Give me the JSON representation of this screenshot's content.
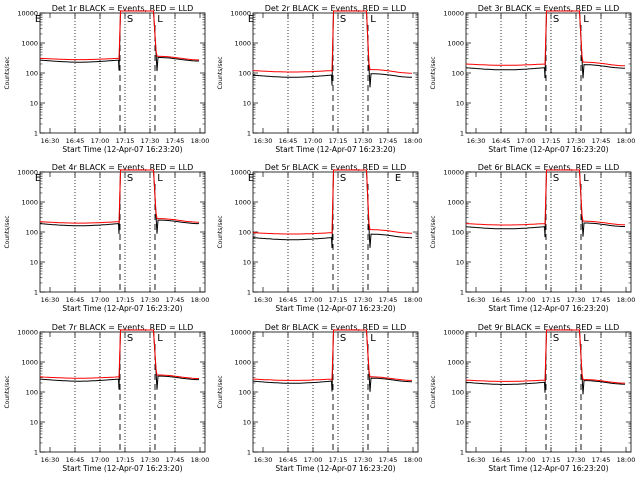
{
  "figure": {
    "background": "#ffffff",
    "colors": {
      "axes": "#000000",
      "events": "#000000",
      "lld": "#ff0000"
    },
    "rows": 3,
    "cols": 3
  },
  "chart_data": [
    {
      "type": "line",
      "title": "Det 1r BLACK = Events, RED = LLD",
      "xlabel": "Start Time (12-Apr-07 16:23:20)",
      "ylabel": "Counts/sec",
      "yscale": "log",
      "ylim": [
        1,
        10000
      ],
      "xlim": [
        16.4,
        18.05
      ],
      "xtick_values": [
        16.5,
        16.75,
        17.0,
        17.25,
        17.5,
        17.75,
        18.0
      ],
      "xticks": [
        "16:30",
        "16:45",
        "17:00",
        "17:15",
        "17:30",
        "17:45",
        "18:00"
      ],
      "yticks": [
        "1",
        "10",
        "100",
        "1000",
        "10000"
      ],
      "markers": [
        {
          "x": 16.38,
          "label": "E"
        },
        {
          "x": 17.3,
          "label": "S"
        },
        {
          "x": 17.6,
          "label": "L"
        }
      ],
      "dotted_lines": [
        16.75,
        17.0,
        17.25,
        17.5,
        17.75
      ],
      "dashed_lines": [
        17.2,
        17.55
      ],
      "events_level": 270,
      "lld_level": 310,
      "events_level_after": 330,
      "lld_level_after": 360
    },
    {
      "type": "line",
      "title": "Det 2r BLACK = Events, RED = LLD",
      "xlabel": "Start Time (12-Apr-07 16:23:20)",
      "ylabel": "Counts/sec",
      "yscale": "log",
      "ylim": [
        1,
        10000
      ],
      "xlim": [
        16.4,
        18.05
      ],
      "xtick_values": [
        16.5,
        16.75,
        17.0,
        17.25,
        17.5,
        17.75,
        18.0
      ],
      "xticks": [
        "16:30",
        "16:45",
        "17:00",
        "17:15",
        "17:30",
        "17:45",
        "18:00"
      ],
      "yticks": [
        "1",
        "10",
        "100",
        "1000",
        "10000"
      ],
      "markers": [
        {
          "x": 16.38,
          "label": "E"
        },
        {
          "x": 17.3,
          "label": "S"
        },
        {
          "x": 17.6,
          "label": "L"
        }
      ],
      "dotted_lines": [
        16.75,
        17.0,
        17.25,
        17.5,
        17.75
      ],
      "dashed_lines": [
        17.2,
        17.55
      ],
      "events_level": 85,
      "lld_level": 120,
      "events_level_after": 95,
      "lld_level_after": 130
    },
    {
      "type": "line",
      "title": "Det 3r BLACK = Events, RED = LLD",
      "xlabel": "Start Time (12-Apr-07 16:23:20)",
      "ylabel": "Counts/sec",
      "yscale": "log",
      "ylim": [
        1,
        10000
      ],
      "xlim": [
        16.4,
        18.05
      ],
      "xtick_values": [
        16.5,
        16.75,
        17.0,
        17.25,
        17.5,
        17.75,
        18.0
      ],
      "xticks": [
        "16:30",
        "16:45",
        "17:00",
        "17:15",
        "17:30",
        "17:45",
        "18:00"
      ],
      "yticks": [
        "1",
        "10",
        "100",
        "1000",
        "10000"
      ],
      "markers": [
        {
          "x": 17.3,
          "label": "S"
        },
        {
          "x": 17.6,
          "label": "L"
        }
      ],
      "dotted_lines": [
        16.75,
        17.0,
        17.25,
        17.5,
        17.75
      ],
      "dashed_lines": [
        17.2,
        17.55
      ],
      "events_level": 150,
      "lld_level": 200,
      "events_level_after": 190,
      "lld_level_after": 230
    },
    {
      "type": "line",
      "title": "Det 4r BLACK = Events, RED = LLD",
      "xlabel": "Start Time (12-Apr-07 16:23:20)",
      "ylabel": "Counts/sec",
      "yscale": "log",
      "ylim": [
        1,
        10000
      ],
      "xlim": [
        16.4,
        18.05
      ],
      "xtick_values": [
        16.5,
        16.75,
        17.0,
        17.25,
        17.5,
        17.75,
        18.0
      ],
      "xticks": [
        "16:30",
        "16:45",
        "17:00",
        "17:15",
        "17:30",
        "17:45",
        "18:00"
      ],
      "yticks": [
        "1",
        "10",
        "100",
        "1000",
        "10000"
      ],
      "markers": [
        {
          "x": 16.38,
          "label": "E"
        },
        {
          "x": 17.3,
          "label": "S"
        },
        {
          "x": 17.6,
          "label": "L"
        }
      ],
      "dotted_lines": [
        16.75,
        17.0,
        17.25,
        17.5,
        17.75
      ],
      "dashed_lines": [
        17.2,
        17.55
      ],
      "events_level": 190,
      "lld_level": 220,
      "events_level_after": 250,
      "lld_level_after": 280
    },
    {
      "type": "line",
      "title": "Det 5r BLACK = Events, RED = LLD",
      "xlabel": "Start Time (12-Apr-07 16:23:20)",
      "ylabel": "Counts/sec",
      "yscale": "log",
      "ylim": [
        1,
        10000
      ],
      "xlim": [
        16.4,
        18.05
      ],
      "xtick_values": [
        16.5,
        16.75,
        17.0,
        17.25,
        17.5,
        17.75,
        18.0
      ],
      "xticks": [
        "16:30",
        "16:45",
        "17:00",
        "17:15",
        "17:30",
        "17:45",
        "18:00"
      ],
      "yticks": [
        "1",
        "10",
        "100",
        "1000",
        "10000"
      ],
      "markers": [
        {
          "x": 16.38,
          "label": "E"
        },
        {
          "x": 17.3,
          "label": "S"
        },
        {
          "x": 17.85,
          "label": "E"
        }
      ],
      "dotted_lines": [
        16.75,
        17.0,
        17.25,
        17.5,
        17.75
      ],
      "dashed_lines": [
        17.2,
        17.55
      ],
      "events_level": 65,
      "lld_level": 95,
      "events_level_after": 85,
      "lld_level_after": 120
    },
    {
      "type": "line",
      "title": "Det 6r BLACK = Events, RED = LLD",
      "xlabel": "Start Time (12-Apr-07 16:23:20)",
      "ylabel": "Counts/sec",
      "yscale": "log",
      "ylim": [
        1,
        10000
      ],
      "xlim": [
        16.4,
        18.05
      ],
      "xtick_values": [
        16.5,
        16.75,
        17.0,
        17.25,
        17.5,
        17.75,
        18.0
      ],
      "xticks": [
        "16:30",
        "16:45",
        "17:00",
        "17:15",
        "17:30",
        "17:45",
        "18:00"
      ],
      "yticks": [
        "1",
        "10",
        "100",
        "1000",
        "10000"
      ],
      "markers": [
        {
          "x": 17.3,
          "label": "S"
        },
        {
          "x": 17.6,
          "label": "L"
        }
      ],
      "dotted_lines": [
        16.75,
        17.0,
        17.25,
        17.5,
        17.75
      ],
      "dashed_lines": [
        17.2,
        17.55
      ],
      "events_level": 150,
      "lld_level": 190,
      "events_level_after": 200,
      "lld_level_after": 230
    },
    {
      "type": "line",
      "title": "Det 7r BLACK = Events, RED = LLD",
      "xlabel": "Start Time (12-Apr-07 16:23:20)",
      "ylabel": "Counts/sec",
      "yscale": "log",
      "ylim": [
        1,
        10000
      ],
      "xlim": [
        16.4,
        18.05
      ],
      "xtick_values": [
        16.5,
        16.75,
        17.0,
        17.25,
        17.5,
        17.75,
        18.0
      ],
      "xticks": [
        "16:30",
        "16:45",
        "17:00",
        "17:15",
        "17:30",
        "17:45",
        "18:00"
      ],
      "yticks": [
        "1",
        "10",
        "100",
        "1000",
        "10000"
      ],
      "markers": [
        {
          "x": 17.3,
          "label": "S"
        },
        {
          "x": 17.6,
          "label": "L"
        }
      ],
      "dotted_lines": [
        16.75,
        17.0,
        17.25,
        17.5,
        17.75
      ],
      "dashed_lines": [
        17.2,
        17.55
      ],
      "events_level": 270,
      "lld_level": 320,
      "events_level_after": 340,
      "lld_level_after": 370
    },
    {
      "type": "line",
      "title": "Det 8r BLACK = Events, RED = LLD",
      "xlabel": "Start Time (12-Apr-07 16:23:20)",
      "ylabel": "Counts/sec",
      "yscale": "log",
      "ylim": [
        1,
        10000
      ],
      "xlim": [
        16.4,
        18.05
      ],
      "xtick_values": [
        16.5,
        16.75,
        17.0,
        17.25,
        17.5,
        17.75,
        18.0
      ],
      "xticks": [
        "16:30",
        "16:45",
        "17:00",
        "17:15",
        "17:30",
        "17:45",
        "18:00"
      ],
      "yticks": [
        "1",
        "10",
        "100",
        "1000",
        "10000"
      ],
      "markers": [
        {
          "x": 17.3,
          "label": "S"
        },
        {
          "x": 17.6,
          "label": "L"
        }
      ],
      "dotted_lines": [
        16.75,
        17.0,
        17.25,
        17.5,
        17.75
      ],
      "dashed_lines": [
        17.2,
        17.55
      ],
      "events_level": 230,
      "lld_level": 270,
      "events_level_after": 290,
      "lld_level_after": 320
    },
    {
      "type": "line",
      "title": "Det 9r BLACK = Events, RED = LLD",
      "xlabel": "Start Time (12-Apr-07 16:23:20)",
      "ylabel": "Counts/sec",
      "yscale": "log",
      "ylim": [
        1,
        10000
      ],
      "xlim": [
        16.4,
        18.05
      ],
      "xtick_values": [
        16.5,
        16.75,
        17.0,
        17.25,
        17.5,
        17.75,
        18.0
      ],
      "xticks": [
        "16:30",
        "16:45",
        "17:00",
        "17:15",
        "17:30",
        "17:45",
        "18:00"
      ],
      "yticks": [
        "1",
        "10",
        "100",
        "1000",
        "10000"
      ],
      "markers": [
        {
          "x": 17.3,
          "label": "S"
        },
        {
          "x": 17.6,
          "label": "L"
        }
      ],
      "dotted_lines": [
        16.75,
        17.0,
        17.25,
        17.5,
        17.75
      ],
      "dashed_lines": [
        17.2,
        17.55
      ],
      "events_level": 210,
      "lld_level": 250,
      "events_level_after": 240,
      "lld_level_after": 260
    }
  ]
}
